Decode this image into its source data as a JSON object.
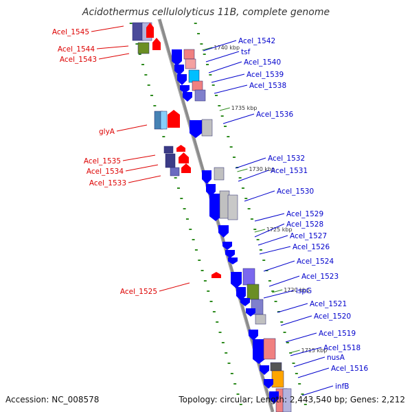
{
  "title": "Acidothermus cellulolyticus 11B, complete genome",
  "footer": {
    "accession": "Accession: NC_008578",
    "summary": "Topology: circular; Length: 2,443,540 bp; Genes: 2,212"
  },
  "colors": {
    "backbone": "#8c8c8c",
    "ruler_dots": "#2e8b1e",
    "forward_label": "#0000cc",
    "reverse_label": "#dd0000"
  },
  "kbp_marks": [
    {
      "kbp": 1740,
      "label": "1740 kbp"
    },
    {
      "kbp": 1735,
      "label": "1735 kbp"
    },
    {
      "kbp": 1730,
      "label": "1730 kbp"
    },
    {
      "kbp": 1725,
      "label": "1725 kbp"
    },
    {
      "kbp": 1720,
      "label": "1720 kbp"
    },
    {
      "kbp": 1715,
      "label": "1715 kbp"
    }
  ],
  "genes_reverse": [
    {
      "name": "Acel_1545",
      "color": "#ff0000"
    },
    {
      "name": "Acel_1544",
      "color": "#ff0000"
    },
    {
      "name": "Acel_1543",
      "color": "#6b8e23"
    },
    {
      "name": "glyA",
      "color": "#ff0000"
    },
    {
      "name": "Acel_1535",
      "color": "#ff0000"
    },
    {
      "name": "Acel_1534",
      "color": "#ff0000"
    },
    {
      "name": "Acel_1533",
      "color": "#ff0000"
    },
    {
      "name": "Acel_1525",
      "color": "#ff0000"
    }
  ],
  "genes_forward": [
    {
      "name": "Acel_1542"
    },
    {
      "name": "tsf"
    },
    {
      "name": "Acel_1540"
    },
    {
      "name": "Acel_1539"
    },
    {
      "name": "Acel_1538"
    },
    {
      "name": "Acel_1536"
    },
    {
      "name": "Acel_1532"
    },
    {
      "name": "Acel_1531"
    },
    {
      "name": "Acel_1530"
    },
    {
      "name": "Acel_1529"
    },
    {
      "name": "Acel_1528"
    },
    {
      "name": "Acel_1527"
    },
    {
      "name": "Acel_1526"
    },
    {
      "name": "Acel_1524"
    },
    {
      "name": "Acel_1523"
    },
    {
      "name": "ispG"
    },
    {
      "name": "Acel_1521"
    },
    {
      "name": "Acel_1520"
    },
    {
      "name": "Acel_1519"
    },
    {
      "name": "Acel_1518"
    },
    {
      "name": "nusA"
    },
    {
      "name": "Acel_1516"
    },
    {
      "name": "infB"
    }
  ]
}
